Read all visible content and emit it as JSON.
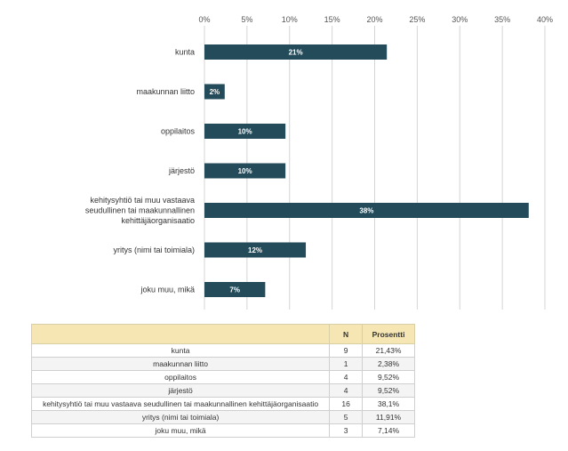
{
  "chart_data": {
    "type": "bar",
    "orientation": "horizontal",
    "categories": [
      "kunta",
      "maakunnan liitto",
      "oppilaitos",
      "järjestö",
      "kehitysyhtiö tai muu vastaava seudullinen tai maakunnallinen kehittäjäorganisaatio",
      "yritys (nimi tai toimiala)",
      "joku muu, mikä"
    ],
    "category_lines": [
      [
        "kunta"
      ],
      [
        "maakunnan liitto"
      ],
      [
        "oppilaitos"
      ],
      [
        "järjestö"
      ],
      [
        "kehitysyhtiö tai muu vastaava",
        "seudullinen tai maakunnallinen",
        "kehittäjäorganisaatio"
      ],
      [
        "yritys (nimi tai toimiala)"
      ],
      [
        "joku muu, mikä"
      ]
    ],
    "values": [
      21.43,
      2.38,
      9.52,
      9.52,
      38.1,
      11.91,
      7.14
    ],
    "data_labels": [
      "21%",
      "2%",
      "10%",
      "10%",
      "38%",
      "12%",
      "7%"
    ],
    "xlim": [
      0,
      40
    ],
    "xticks": [
      "0%",
      "5%",
      "10%",
      "15%",
      "20%",
      "25%",
      "30%",
      "35%",
      "40%"
    ],
    "bar_color": "#244b5a",
    "grid": true,
    "legend": "none"
  },
  "table": {
    "headers": [
      "",
      "N",
      "Prosentti"
    ],
    "rows": [
      [
        "kunta",
        "9",
        "21,43%"
      ],
      [
        "maakunnan liitto",
        "1",
        "2,38%"
      ],
      [
        "oppilaitos",
        "4",
        "9,52%"
      ],
      [
        "järjestö",
        "4",
        "9,52%"
      ],
      [
        "kehitysyhtiö tai muu vastaava seudullinen tai maakunnallinen kehittäjäorganisaatio",
        "16",
        "38,1%"
      ],
      [
        "yritys (nimi tai toimiala)",
        "5",
        "11,91%"
      ],
      [
        "joku muu, mikä",
        "3",
        "7,14%"
      ]
    ]
  }
}
